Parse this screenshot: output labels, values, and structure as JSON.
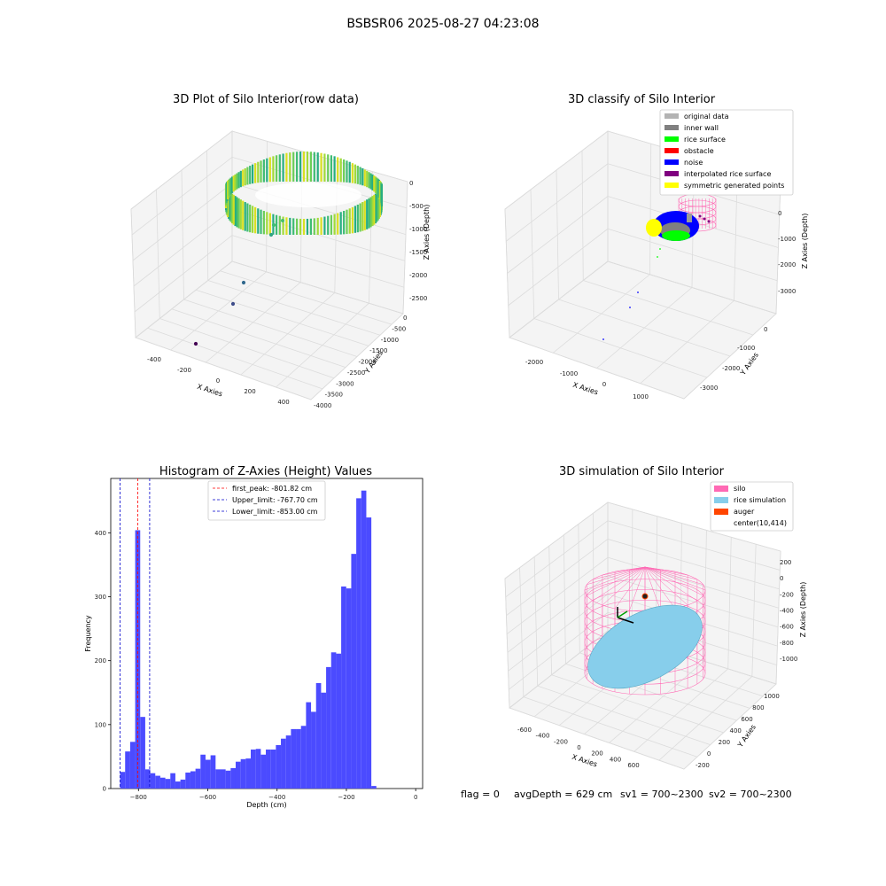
{
  "figure_title": "BSBSR06 2025-08-27 04:23:08",
  "status_line": {
    "flag": "flag = 0",
    "avg_depth": "avgDepth = 629 cm",
    "sv1": "sv1 = 700~2300",
    "sv2": "sv2 = 700~2300"
  },
  "colors": {
    "original_data": "#b3b3b3",
    "inner_wall": "#808080",
    "rice_surface": "#00ff00",
    "obstacle": "#ff0000",
    "noise": "#0000ff",
    "interpolated_rice_surface": "#800080",
    "symmetric_generated_points": "#ffff00",
    "silo": "#ff69b4",
    "rice_simulation": "#87ceeb",
    "auger": "#ff4500",
    "hist_bar": "#4b4bff",
    "first_peak_line": "#ff0000",
    "limit_line": "#0000cc"
  },
  "chart_data": [
    {
      "type": "scatter3d",
      "title": "3D Plot of Silo Interior(row data)",
      "xlabel": "X Axies",
      "ylabel": "Y Axies",
      "zlabel": "Z Axies (Depth)",
      "x_ticks": [
        "-400",
        "-200",
        "0",
        "200",
        "400"
      ],
      "y_ticks": [
        "0",
        "-500",
        "-1000",
        "-1500",
        "-2000",
        "-2500",
        "-3000",
        "-3500",
        "-4000"
      ],
      "z_ticks": [
        "0",
        "-500",
        "-1000",
        "-1500",
        "-2000",
        "-2500"
      ],
      "outliers": [
        {
          "x": 0,
          "y": -1500,
          "z": -1000
        },
        {
          "x": -20,
          "y": -1600,
          "z": -1100
        },
        {
          "x": -60,
          "y": -1800,
          "z": -1300
        },
        {
          "x": -120,
          "y": -2400,
          "z": -1900
        },
        {
          "x": -180,
          "y": -2800,
          "z": -2150
        },
        {
          "x": -300,
          "y": -3600,
          "z": -2600
        }
      ]
    },
    {
      "type": "scatter3d",
      "title": "3D classify of Silo Interior",
      "xlabel": "X Axies",
      "ylabel": "Y Axies",
      "zlabel": "Z Axies (Depth)",
      "x_ticks": [
        "-2000",
        "-1000",
        "0",
        "1000"
      ],
      "y_ticks": [
        "0",
        "-1000",
        "-2000",
        "-3000"
      ],
      "z_ticks": [
        "0",
        "-1000",
        "-2000",
        "-3000"
      ],
      "legend": [
        "original data",
        "inner wall",
        "rice surface",
        "obstacle",
        "noise",
        "interpolated rice surface",
        "symmetric generated points"
      ],
      "legend_position": "top-right"
    },
    {
      "type": "bar",
      "title": "Histogram of Z-Axies (Height) Values",
      "xlabel": "Depth (cm)",
      "ylabel": "Frequency",
      "xlim": [
        -880,
        20
      ],
      "ylim": [
        0,
        485
      ],
      "x_ticks": [
        -800,
        -600,
        -400,
        -200,
        0
      ],
      "y_ticks": [
        0,
        100,
        200,
        300,
        400
      ],
      "bin_start": -853,
      "bin_width": 14.5,
      "values": [
        26,
        58,
        73,
        404,
        112,
        30,
        24,
        20,
        17,
        15,
        24,
        11,
        14,
        25,
        27,
        31,
        53,
        45,
        52,
        30,
        30,
        28,
        32,
        42,
        46,
        47,
        61,
        62,
        53,
        61,
        61,
        68,
        78,
        83,
        93,
        93,
        98,
        135,
        120,
        165,
        150,
        190,
        213,
        211,
        316,
        313,
        367,
        454,
        466,
        424,
        4
      ],
      "lines": [
        {
          "label": "first_peak: -801.82 cm",
          "x": -801.82,
          "style": "first_peak"
        },
        {
          "label": "Upper_limit: -767.70 cm",
          "x": -767.7,
          "style": "limit"
        },
        {
          "label": "Lower_limit: -853.00 cm",
          "x": -853.0,
          "style": "limit"
        }
      ],
      "legend_position": "top-center"
    },
    {
      "type": "surface3d",
      "title": "3D simulation of Silo Interior",
      "xlabel": "X Axies",
      "ylabel": "Y Axies",
      "zlabel": "Z Axies (Depth)",
      "x_ticks": [
        "-600",
        "-400",
        "-200",
        "0",
        "200",
        "400",
        "600"
      ],
      "y_ticks": [
        "1000",
        "800",
        "600",
        "400",
        "200",
        "0",
        "-200"
      ],
      "z_ticks": [
        "200",
        "0",
        "-200",
        "-400",
        "-600",
        "-800",
        "-1000"
      ],
      "legend": [
        "silo",
        "rice simulation",
        "auger",
        "center(10,414)"
      ],
      "legend_position": "top-right"
    }
  ]
}
